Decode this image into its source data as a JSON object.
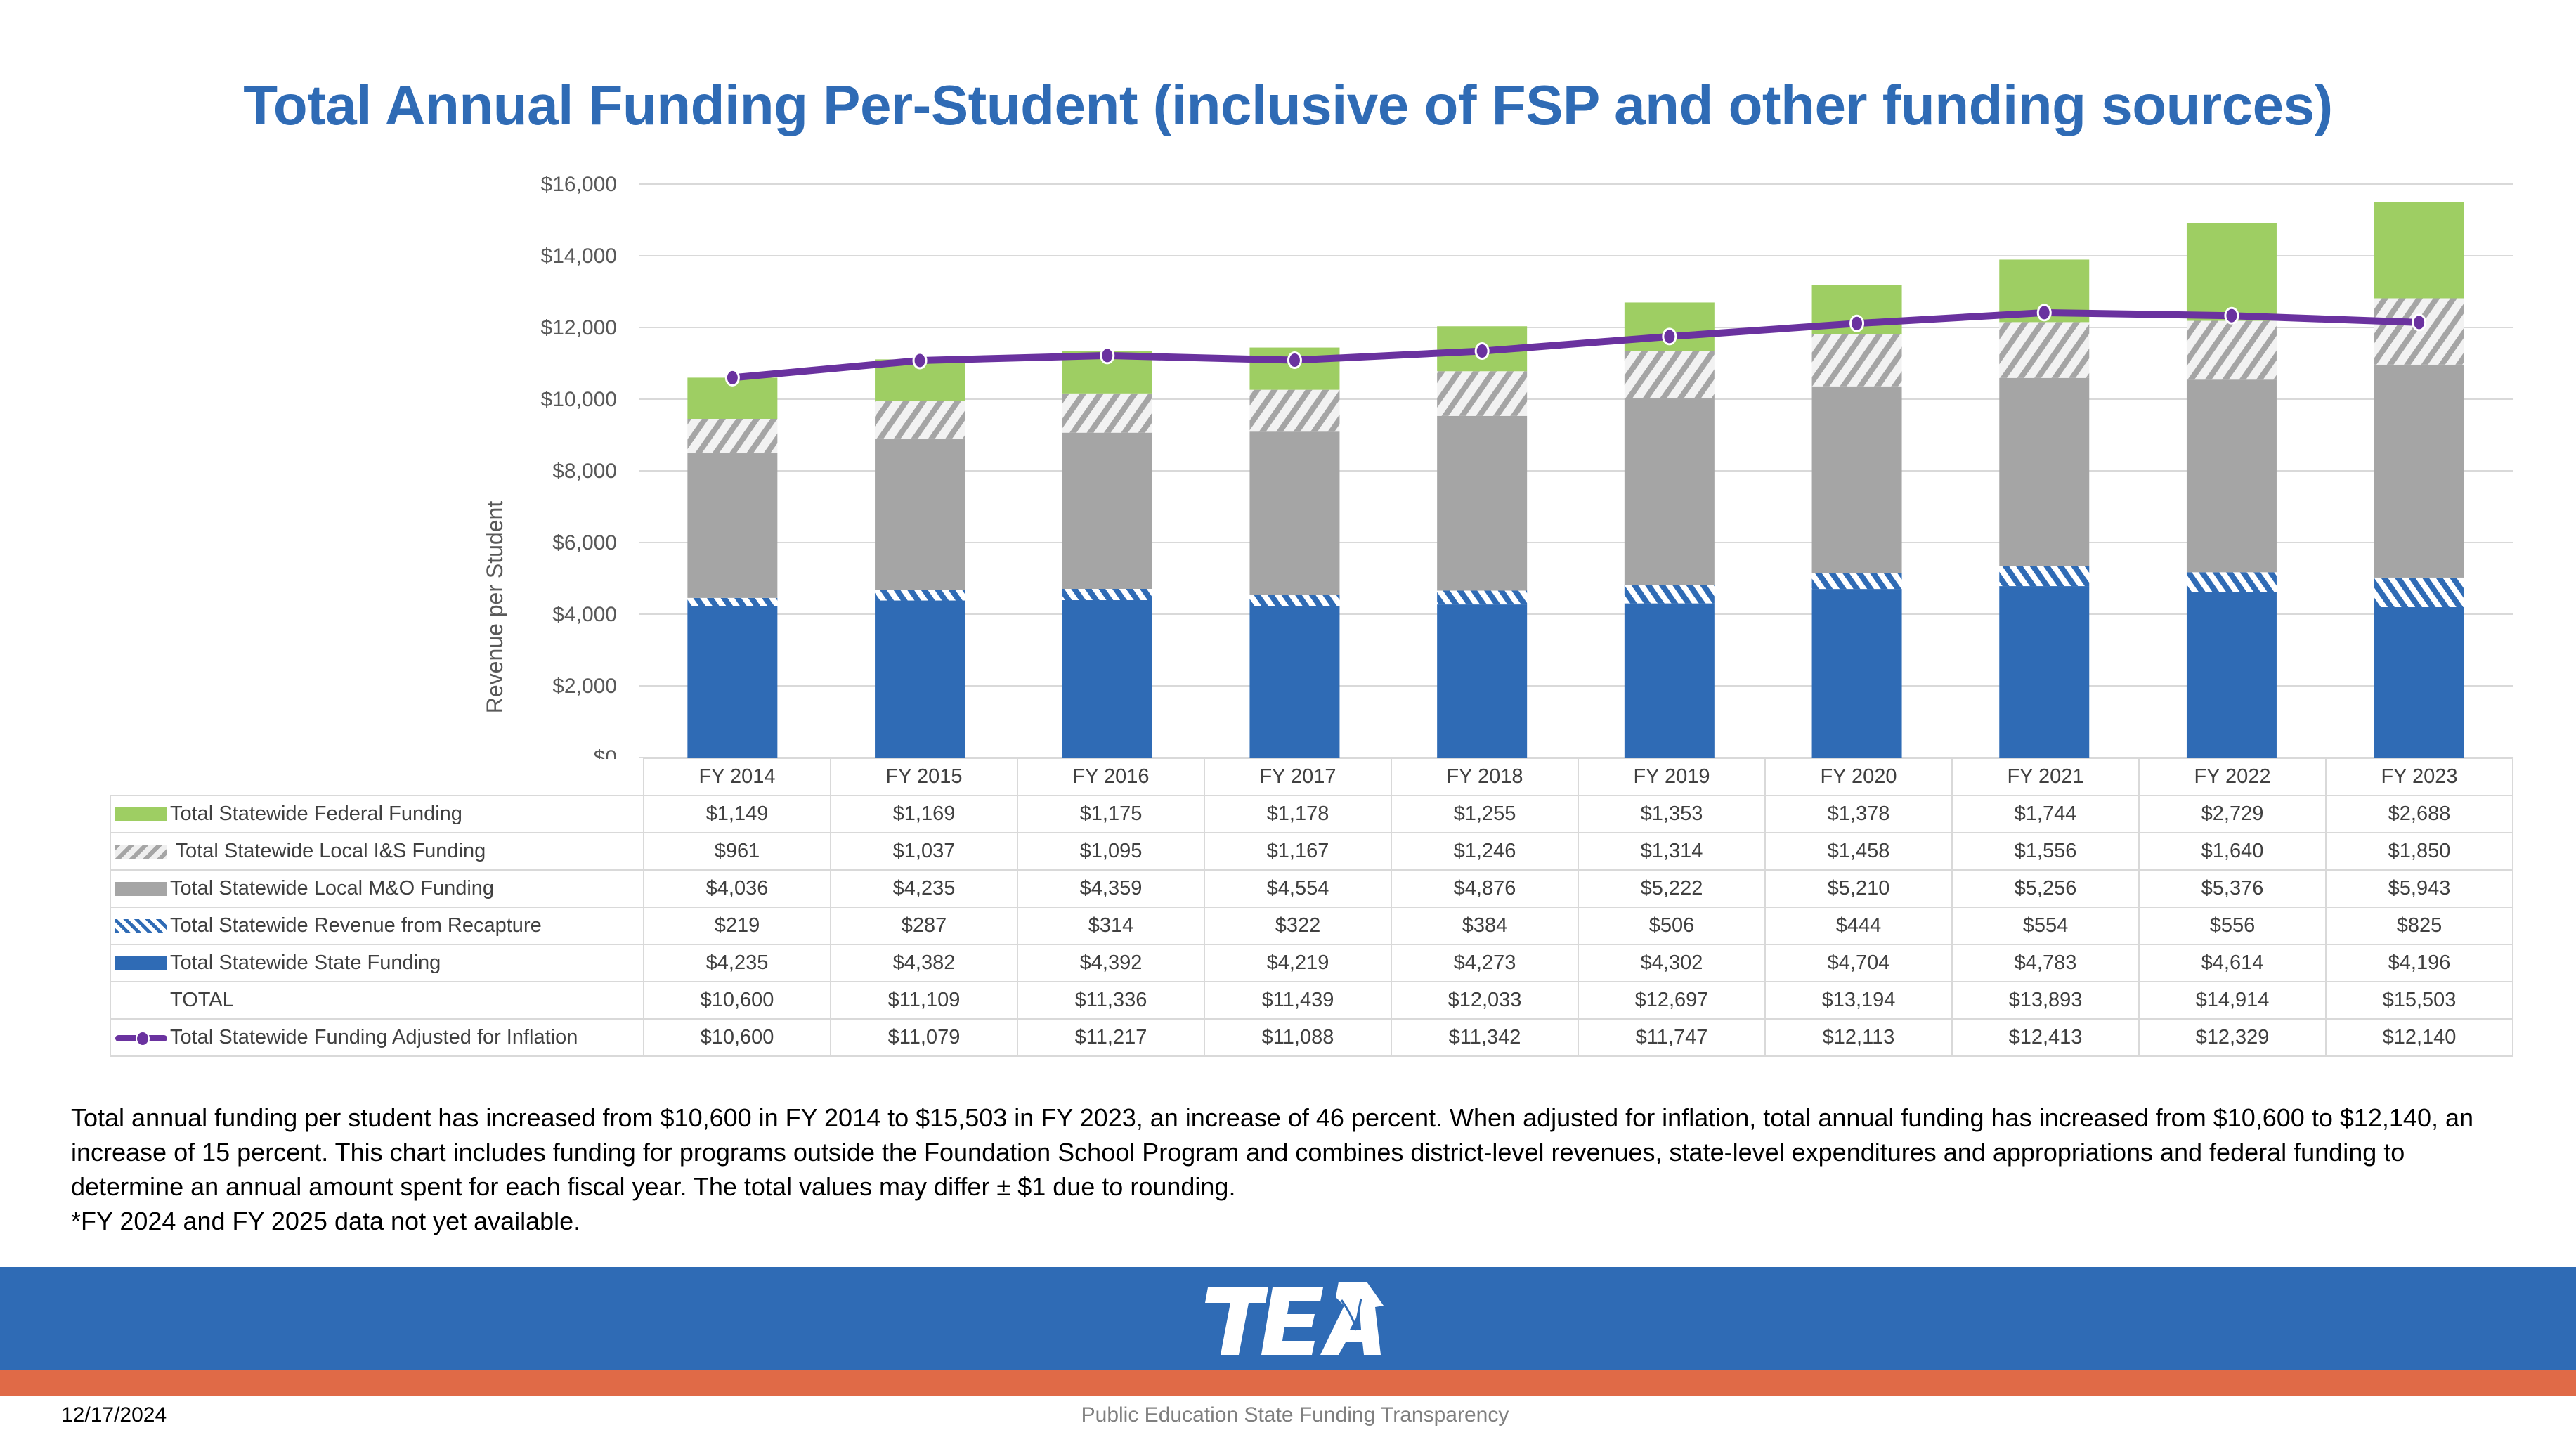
{
  "header": {
    "title": "Total Annual Funding Per-Student (inclusive of FSP and other funding sources)"
  },
  "colors": {
    "title": "#2F6BB5",
    "federal": "#9ECE63",
    "local_ins": "#A5A5A5",
    "local_mo": "#A5A5A5",
    "recapture": "#2F6BB5",
    "state": "#2F6BB5",
    "inflation_line": "#6A329F",
    "band_blue": "#2F6BB5",
    "band_orange": "#E06A47",
    "gridline": "#D9D9D9"
  },
  "chart_data": {
    "type": "bar",
    "stacked": true,
    "title": "Total Annual Funding Per-Student (inclusive of FSP and other funding sources)",
    "xlabel": "",
    "ylabel": "Revenue per Student",
    "ylim": [
      0,
      16000
    ],
    "yticks": [
      "$0",
      "$2,000",
      "$4,000",
      "$6,000",
      "$8,000",
      "$10,000",
      "$12,000",
      "$14,000",
      "$16,000"
    ],
    "grid": true,
    "legend_position": "data-table",
    "categories": [
      "FY 2014",
      "FY 2015",
      "FY 2016",
      "FY 2017",
      "FY 2018",
      "FY 2019",
      "FY 2020",
      "FY 2021",
      "FY 2022",
      "FY 2023"
    ],
    "series": [
      {
        "name": "Total Statewide Federal Funding",
        "kind": "bar",
        "key": "federal",
        "values": [
          1149,
          1169,
          1175,
          1178,
          1255,
          1353,
          1378,
          1744,
          2729,
          2688
        ],
        "labels": [
          "$1,149",
          "$1,169",
          "$1,175",
          "$1,178",
          "$1,255",
          "$1,353",
          "$1,378",
          "$1,744",
          "$2,729",
          "$2,688"
        ]
      },
      {
        "name": "Total Statewide Local I&S Funding",
        "kind": "bar",
        "key": "ins",
        "values": [
          961,
          1037,
          1095,
          1167,
          1246,
          1314,
          1458,
          1556,
          1640,
          1850
        ],
        "labels": [
          "$961",
          "$1,037",
          "$1,095",
          "$1,167",
          "$1,246",
          "$1,314",
          "$1,458",
          "$1,556",
          "$1,640",
          "$1,850"
        ]
      },
      {
        "name": "Total Statewide Local M&O Funding",
        "kind": "bar",
        "key": "mo",
        "values": [
          4036,
          4235,
          4359,
          4554,
          4876,
          5222,
          5210,
          5256,
          5376,
          5943
        ],
        "labels": [
          "$4,036",
          "$4,235",
          "$4,359",
          "$4,554",
          "$4,876",
          "$5,222",
          "$5,210",
          "$5,256",
          "$5,376",
          "$5,943"
        ]
      },
      {
        "name": "Total Statewide Revenue from Recapture",
        "kind": "bar",
        "key": "recap",
        "values": [
          219,
          287,
          314,
          322,
          384,
          506,
          444,
          554,
          556,
          825
        ],
        "labels": [
          "$219",
          "$287",
          "$314",
          "$322",
          "$384",
          "$506",
          "$444",
          "$554",
          "$556",
          "$825"
        ]
      },
      {
        "name": "Total Statewide State Funding",
        "kind": "bar",
        "key": "state",
        "values": [
          4235,
          4382,
          4392,
          4219,
          4273,
          4302,
          4704,
          4783,
          4614,
          4196
        ],
        "labels": [
          "$4,235",
          "$4,382",
          "$4,392",
          "$4,219",
          "$4,273",
          "$4,302",
          "$4,704",
          "$4,783",
          "$4,614",
          "$4,196"
        ]
      },
      {
        "name": "TOTAL",
        "kind": "total",
        "key": "blank",
        "values": [
          10600,
          11109,
          11336,
          11439,
          12033,
          12697,
          13194,
          13893,
          14914,
          15503
        ],
        "labels": [
          "$10,600",
          "$11,109",
          "$11,336",
          "$11,439",
          "$12,033",
          "$12,697",
          "$13,194",
          "$13,893",
          "$14,914",
          "$15,503"
        ]
      },
      {
        "name": "Total Statewide Funding Adjusted for Inflation",
        "kind": "line",
        "key": "line",
        "values": [
          10600,
          11079,
          11217,
          11088,
          11342,
          11747,
          12113,
          12413,
          12329,
          12140
        ],
        "labels": [
          "$10,600",
          "$11,079",
          "$11,217",
          "$11,088",
          "$11,342",
          "$11,747",
          "$12,113",
          "$12,413",
          "$12,329",
          "$12,140"
        ]
      }
    ],
    "stack_order_bottom_to_top": [
      "state",
      "recap",
      "mo",
      "ins",
      "federal"
    ]
  },
  "footnote": {
    "paragraph": "Total annual funding per student has increased from $10,600 in FY 2014 to $15,503 in FY 2023, an increase of  46 percent.  When adjusted for inflation, total annual funding has increased from $10,600 to $12,140, an increase of 15 percent.  This chart includes funding for programs outside the Foundation School Program and combines district-level revenues, state-level expenditures and appropriations and federal funding to determine an annual amount spent for each fiscal year. The total values may differ ± $1 due to rounding.",
    "note": "*FY 2024 and FY 2025 data not yet available."
  },
  "footer": {
    "logo_text": "TEA",
    "date": "12/17/2024",
    "subtitle": "Public Education State Funding Transparency"
  }
}
